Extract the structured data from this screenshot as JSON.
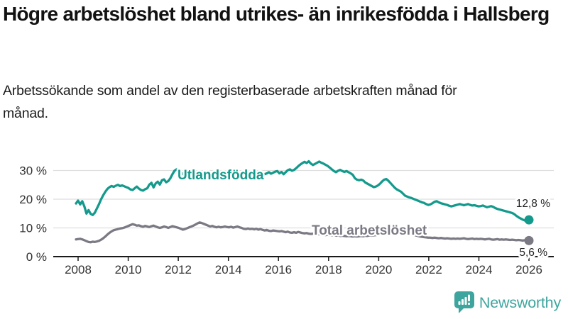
{
  "header": {
    "title": "Högre arbetslöshet bland utrikes- än inrikesfödda i Hallsberg",
    "subtitle": "Arbetssökande som andel av den registerbaserade arbetskraften månad för månad."
  },
  "branding": {
    "name": "Newsworthy",
    "icon": "newsworthy-speech-bubble-bar-chart-icon",
    "color": "#3ea59e"
  },
  "colors": {
    "accent_teal": "#149a8c",
    "neutral_gray": "#7b7983",
    "axis": "#1a1a1a",
    "gridline": "#dedede",
    "text": "#121212"
  },
  "chart_data": {
    "type": "line",
    "title": "Högre arbetslöshet bland utrikes- än inrikesfödda i Hallsberg",
    "subtitle": "Arbetssökande som andel av den registerbaserade arbetskraften månad för månad.",
    "unit": "%",
    "x_frequency": "monthly",
    "x_start": "2007-12",
    "x_end": "2026-01",
    "x_tick_labels": [
      "2008",
      "2010",
      "2012",
      "2014",
      "2016",
      "2018",
      "2020",
      "2022",
      "2024",
      "2026"
    ],
    "y_ticks": [
      0,
      10,
      20,
      30
    ],
    "y_tick_labels": [
      "0 %",
      "10 %",
      "20 %",
      "30 %"
    ],
    "ylim": [
      0,
      35.5
    ],
    "grid": "horizontal",
    "legend_position": "inline-labels",
    "series": [
      {
        "name": "Utlandsfödda",
        "color": "#149a8c",
        "end_label": "12,8 %",
        "end_value": 12.8,
        "values": [
          18.5,
          19.5,
          18.2,
          19.3,
          17.5,
          15.0,
          16.2,
          14.9,
          14.5,
          15.3,
          16.8,
          18.3,
          20.0,
          21.4,
          22.6,
          23.6,
          24.2,
          24.6,
          24.3,
          24.7,
          25.0,
          24.6,
          24.8,
          24.5,
          24.2,
          23.9,
          23.4,
          23.2,
          23.8,
          24.4,
          23.7,
          23.2,
          23.0,
          23.5,
          23.8,
          25.1,
          25.7,
          24.1,
          25.5,
          26.1,
          25.1,
          26.6,
          26.9,
          25.9,
          26.3,
          27.3,
          28.7,
          29.9,
          30.4,
          30.0,
          29.3,
          28.7,
          29.1,
          28.5,
          28.0,
          28.4,
          28.9,
          28.3,
          28.7,
          29.1,
          28.6,
          28.9,
          28.4,
          28.0,
          28.3,
          28.7,
          28.2,
          27.8,
          28.1,
          28.5,
          28.0,
          28.3,
          28.7,
          28.5,
          28.1,
          28.4,
          28.8,
          28.3,
          27.9,
          28.2,
          28.6,
          28.1,
          28.4,
          28.8,
          29.0,
          29.2,
          28.8,
          29.1,
          29.5,
          29.0,
          28.7,
          29.0,
          29.4,
          28.9,
          29.2,
          29.6,
          29.8,
          29.0,
          29.5,
          28.7,
          29.4,
          30.1,
          30.4,
          29.9,
          30.2,
          30.8,
          31.5,
          32.1,
          32.6,
          33.0,
          32.6,
          33.2,
          32.4,
          31.9,
          32.3,
          32.7,
          33.1,
          32.7,
          32.4,
          32.0,
          31.6,
          31.0,
          30.4,
          29.8,
          29.4,
          29.9,
          30.2,
          29.8,
          29.5,
          29.8,
          29.4,
          29.0,
          28.5,
          27.3,
          26.8,
          26.6,
          26.8,
          26.5,
          25.8,
          25.4,
          25.0,
          24.6,
          24.2,
          24.4,
          24.8,
          25.4,
          26.2,
          26.8,
          27.0,
          26.4,
          25.6,
          24.8,
          24.0,
          23.4,
          23.0,
          22.6,
          21.9,
          21.2,
          20.9,
          20.6,
          20.4,
          20.1,
          19.8,
          19.5,
          19.2,
          18.9,
          18.7,
          18.3,
          18.0,
          18.2,
          18.6,
          19.1,
          19.3,
          18.9,
          18.6,
          18.4,
          18.2,
          18.0,
          17.7,
          17.5,
          17.7,
          17.9,
          18.1,
          18.3,
          18.1,
          17.9,
          18.1,
          18.3,
          18.0,
          17.8,
          17.9,
          17.7,
          17.5,
          17.6,
          17.8,
          17.5,
          17.2,
          17.4,
          17.6,
          17.3,
          16.9,
          16.6,
          16.4,
          16.2,
          16.0,
          15.8,
          15.6,
          15.4,
          15.2,
          14.8,
          14.2,
          13.7,
          13.3,
          12.9,
          12.6,
          12.5,
          12.8
        ]
      },
      {
        "name": "Total arbetslöshet",
        "color": "#7b7983",
        "end_label": "5,6 %",
        "end_value": 5.6,
        "values": [
          6.0,
          6.1,
          6.2,
          6.0,
          5.7,
          5.4,
          5.1,
          5.0,
          5.2,
          5.1,
          5.3,
          5.5,
          5.9,
          6.4,
          7.0,
          7.7,
          8.3,
          8.8,
          9.2,
          9.4,
          9.6,
          9.8,
          9.9,
          10.1,
          10.4,
          10.7,
          11.0,
          11.3,
          11.1,
          10.8,
          10.9,
          10.6,
          10.4,
          10.7,
          10.5,
          10.3,
          10.6,
          10.8,
          10.5,
          10.2,
          10.0,
          10.2,
          10.5,
          10.3,
          10.0,
          10.3,
          10.6,
          10.4,
          10.2,
          10.0,
          9.7,
          9.4,
          9.6,
          9.9,
          10.2,
          10.5,
          10.8,
          11.2,
          11.6,
          11.9,
          11.7,
          11.4,
          11.1,
          10.8,
          10.5,
          10.7,
          10.4,
          10.2,
          10.4,
          10.2,
          10.3,
          10.5,
          10.3,
          10.2,
          10.4,
          10.1,
          10.3,
          10.5,
          10.2,
          10.0,
          9.7,
          9.6,
          9.8,
          9.6,
          9.7,
          9.5,
          9.7,
          9.4,
          9.6,
          9.3,
          9.1,
          9.3,
          9.0,
          8.9,
          9.1,
          9.0,
          8.9,
          8.8,
          8.9,
          8.7,
          8.5,
          8.7,
          8.4,
          8.3,
          8.5,
          8.3,
          8.6,
          8.4,
          8.2,
          8.1,
          8.2,
          8.0,
          7.9,
          8.0,
          7.8,
          7.7,
          7.8,
          7.6,
          7.7,
          7.5,
          7.6,
          7.5,
          7.4,
          7.5,
          7.3,
          7.4,
          7.2,
          7.3,
          7.2,
          7.1,
          7.2,
          7.1,
          7.0,
          7.1,
          7.0,
          7.1,
          7.2,
          7.1,
          7.3,
          7.2,
          7.4,
          7.3,
          7.4,
          7.5,
          7.6,
          7.9,
          8.4,
          9.1,
          9.6,
          9.8,
          9.6,
          9.4,
          9.2,
          9.0,
          8.9,
          8.7,
          8.6,
          8.4,
          8.2,
          8.0,
          7.8,
          7.6,
          7.4,
          7.2,
          7.0,
          6.9,
          6.8,
          6.7,
          6.6,
          6.6,
          6.5,
          6.6,
          6.5,
          6.4,
          6.5,
          6.4,
          6.3,
          6.4,
          6.3,
          6.2,
          6.3,
          6.2,
          6.3,
          6.2,
          6.3,
          6.4,
          6.2,
          6.1,
          6.2,
          6.3,
          6.1,
          6.2,
          6.1,
          6.2,
          6.1,
          6.0,
          6.1,
          6.2,
          6.0,
          5.9,
          6.0,
          6.1,
          5.9,
          6.0,
          5.9,
          6.0,
          5.9,
          5.8,
          5.9,
          5.8,
          5.7,
          5.8,
          5.7,
          5.6,
          5.7,
          5.7,
          5.6
        ]
      }
    ]
  }
}
